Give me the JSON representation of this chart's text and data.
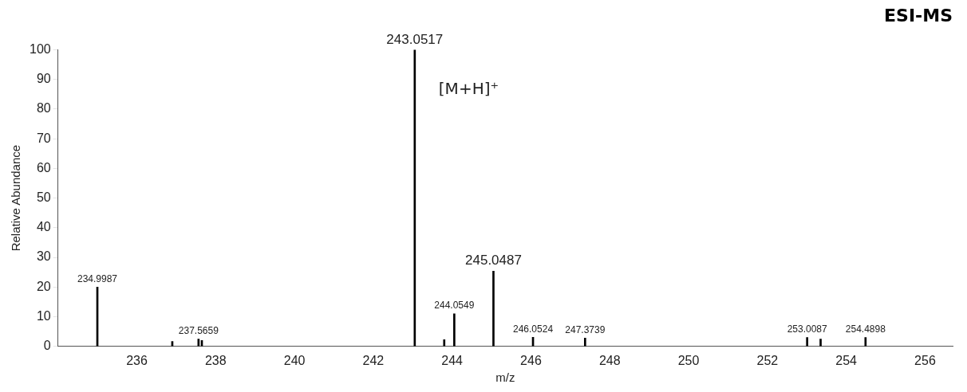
{
  "chart_data": {
    "type": "bar",
    "title": "ESI-MS",
    "xlabel": "m/z",
    "ylabel": "Relative Abundance",
    "x": [
      234.9987,
      236.9,
      237.5659,
      237.65,
      243.0517,
      243.8,
      244.0549,
      245.0487,
      246.0524,
      247.3739,
      253.0087,
      253.35,
      254.4898
    ],
    "values": [
      20,
      1.7,
      2.5,
      2,
      100,
      2.3,
      11,
      25.4,
      3.1,
      2.8,
      3,
      2.5,
      3
    ],
    "color": "#000000",
    "xlim": [
      234,
      256.7
    ],
    "xticks": [
      236,
      238,
      240,
      242,
      244,
      246,
      248,
      250,
      252,
      254,
      256
    ],
    "ylim": [
      0,
      100
    ],
    "yticks": [
      0,
      10,
      20,
      30,
      40,
      50,
      60,
      70,
      80,
      90,
      100
    ],
    "grid": false,
    "legend": false,
    "annotations": [
      {
        "text": "234.9987",
        "x": 234.9987,
        "y": 20
      },
      {
        "text": "237.5659",
        "x": 237.5659,
        "y": 2.5
      },
      {
        "text": "243.0517",
        "x": 243.0517,
        "y": 100
      },
      {
        "text": "244.0549",
        "x": 244.0549,
        "y": 11
      },
      {
        "text": "245.0487",
        "x": 245.0487,
        "y": 25.4
      },
      {
        "text": "246.0524",
        "x": 246.0524,
        "y": 3.1
      },
      {
        "text": "247.3739",
        "x": 247.3739,
        "y": 2.8
      },
      {
        "text": "253.0087",
        "x": 253.0087,
        "y": 3
      },
      {
        "text": "254.4898",
        "x": 254.4898,
        "y": 3
      },
      "[M+H]⁺"
    ]
  }
}
